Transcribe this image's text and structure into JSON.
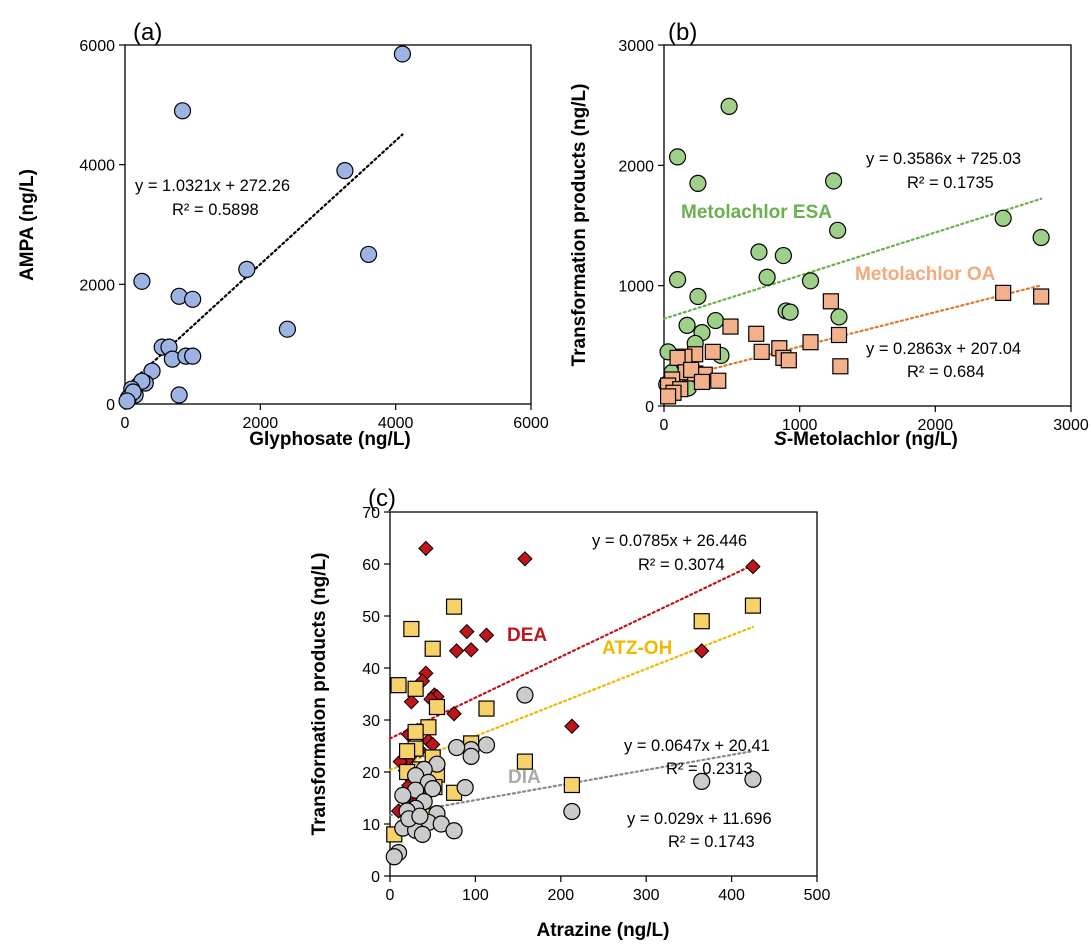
{
  "chart_data": [
    {
      "type": "scatter",
      "panel_label": "(a)",
      "xlabel": "Glyphosate (ng/L)",
      "ylabel": "AMPA (ng/L)",
      "xlim": [
        0,
        6000
      ],
      "ylim": [
        0,
        6000
      ],
      "xticks": [
        "0",
        "2000",
        "4000",
        "6000"
      ],
      "yticks": [
        "0",
        "2000",
        "4000",
        "6000"
      ],
      "grid": false,
      "series": [
        {
          "color": "#9db3e3",
          "marker": "circle",
          "points": [
            [
              4100,
              5850
            ],
            [
              850,
              4900
            ],
            [
              3250,
              3900
            ],
            [
              3600,
              2500
            ],
            [
              1800,
              2250
            ],
            [
              2400,
              1250
            ],
            [
              250,
              2050
            ],
            [
              800,
              1800
            ],
            [
              1000,
              1750
            ],
            [
              550,
              950
            ],
            [
              650,
              950
            ],
            [
              700,
              750
            ],
            [
              900,
              800
            ],
            [
              1000,
              800
            ],
            [
              400,
              550
            ],
            [
              300,
              350
            ],
            [
              250,
              380
            ],
            [
              150,
              150
            ],
            [
              100,
              250
            ],
            [
              50,
              100
            ],
            [
              800,
              150
            ],
            [
              120,
              200
            ],
            [
              30,
              50
            ]
          ],
          "trend": {
            "slope": 1.0321,
            "intercept": 272.26,
            "x_range": [
              0,
              4100
            ],
            "color": "#000000"
          },
          "equation": "y = 1.0321x + 272.26",
          "r2": "R² = 0.5898"
        }
      ]
    },
    {
      "type": "scatter",
      "panel_label": "(b)",
      "xlabel_prefix": "S",
      "xlabel": "-Metolachlor (ng/L)",
      "ylabel": "Transformation products (ng/L)",
      "xlim": [
        0,
        3000
      ],
      "ylim": [
        0,
        3000
      ],
      "xticks": [
        "0",
        "1000",
        "2000",
        "3000"
      ],
      "yticks": [
        "0",
        "1000",
        "2000",
        "3000"
      ],
      "grid": false,
      "series": [
        {
          "name": "Metolachlor ESA",
          "color": "#9fd08a",
          "marker": "circle",
          "points": [
            [
              480,
              2490
            ],
            [
              100,
              2070
            ],
            [
              250,
              1850
            ],
            [
              1250,
              1870
            ],
            [
              2500,
              1560
            ],
            [
              2780,
              1400
            ],
            [
              1280,
              1460
            ],
            [
              700,
              1280
            ],
            [
              880,
              1250
            ],
            [
              760,
              1070
            ],
            [
              100,
              1050
            ],
            [
              1080,
              1040
            ],
            [
              250,
              910
            ],
            [
              900,
              790
            ],
            [
              930,
              780
            ],
            [
              1290,
              740
            ],
            [
              170,
              670
            ],
            [
              380,
              710
            ],
            [
              280,
              610
            ],
            [
              230,
              520
            ],
            [
              420,
              420
            ],
            [
              30,
              450
            ],
            [
              60,
              280
            ],
            [
              150,
              350
            ],
            [
              20,
              180
            ],
            [
              80,
              200
            ],
            [
              250,
              250
            ],
            [
              180,
              150
            ]
          ],
          "trend": {
            "slope": 0.3586,
            "intercept": 725.03,
            "x_range": [
              0,
              2780
            ],
            "color": "#6ab04c"
          },
          "equation": "y = 0.3586x + 725.03",
          "r2": "R² = 0.1735",
          "label_color": "#6ab04c"
        },
        {
          "name": "Metolachlor OA",
          "color": "#f2b08b",
          "marker": "square",
          "points": [
            [
              2500,
              940
            ],
            [
              2780,
              910
            ],
            [
              1230,
              870
            ],
            [
              490,
              660
            ],
            [
              680,
              600
            ],
            [
              1290,
              590
            ],
            [
              1080,
              530
            ],
            [
              850,
              480
            ],
            [
              880,
              400
            ],
            [
              920,
              380
            ],
            [
              720,
              450
            ],
            [
              360,
              450
            ],
            [
              230,
              430
            ],
            [
              150,
              410
            ],
            [
              100,
              400
            ],
            [
              160,
              280
            ],
            [
              230,
              270
            ],
            [
              300,
              260
            ],
            [
              400,
              210
            ],
            [
              1300,
              330
            ],
            [
              60,
              220
            ],
            [
              30,
              170
            ],
            [
              120,
              140
            ],
            [
              70,
              110
            ],
            [
              30,
              80
            ],
            [
              200,
              300
            ],
            [
              280,
              200
            ]
          ],
          "trend": {
            "slope": 0.2863,
            "intercept": 207.04,
            "x_range": [
              0,
              2780
            ],
            "color": "#e07a30"
          },
          "equation": "y = 0.2863x + 207.04",
          "r2": "R² = 0.684",
          "label_color": "#f2a97b"
        }
      ]
    },
    {
      "type": "scatter",
      "panel_label": "(c)",
      "xlabel": "Atrazine (ng/L)",
      "ylabel": "Transformation products (ng/L)",
      "xlim": [
        0,
        500
      ],
      "ylim": [
        0,
        70
      ],
      "xticks": [
        "0",
        "100",
        "200",
        "300",
        "400",
        "500"
      ],
      "yticks": [
        "0",
        "10",
        "20",
        "30",
        "40",
        "50",
        "60",
        "70"
      ],
      "grid": false,
      "series": [
        {
          "name": "DEA",
          "color": "#c0141a",
          "marker": "diamond",
          "points": [
            [
              42,
              63
            ],
            [
              158,
              61
            ],
            [
              425,
              59.5
            ],
            [
              90,
              47
            ],
            [
              113,
              46.3
            ],
            [
              95,
              43.5
            ],
            [
              78,
              43.3
            ],
            [
              365,
              43.3
            ],
            [
              42,
              39
            ],
            [
              38,
              37.5
            ],
            [
              52,
              34.8
            ],
            [
              55,
              34.5
            ],
            [
              48,
              34
            ],
            [
              25,
              33.5
            ],
            [
              75,
              31.2
            ],
            [
              213,
              28.8
            ],
            [
              32,
              28
            ],
            [
              22,
              27.2
            ],
            [
              45,
              26
            ],
            [
              50,
              25.3
            ],
            [
              35,
              24.2
            ],
            [
              28,
              23.7
            ],
            [
              20,
              22.3
            ],
            [
              12,
              22
            ],
            [
              55,
              21.8
            ],
            [
              18,
              20.3
            ],
            [
              35,
              19.8
            ],
            [
              25,
              18.6
            ],
            [
              48,
              18
            ],
            [
              22,
              17.4
            ],
            [
              40,
              16.3
            ],
            [
              15,
              15.5
            ],
            [
              30,
              14.3
            ],
            [
              10,
              12.5
            ],
            [
              42,
              10.2
            ]
          ],
          "trend": {
            "slope": 0.0785,
            "intercept": 26.446,
            "x_range": [
              0,
              425
            ],
            "color": "#c0141a"
          },
          "equation": "y = 0.0785x + 26.446",
          "r2": "R² = 0.3074",
          "label_color": "#c0141a"
        },
        {
          "name": "ATZ-OH",
          "color": "#f7d26b",
          "marker": "square",
          "points": [
            [
              75,
              51.8
            ],
            [
              425,
              52
            ],
            [
              365,
              49
            ],
            [
              25,
              47.5
            ],
            [
              50,
              43.7
            ],
            [
              10,
              36.7
            ],
            [
              30,
              36
            ],
            [
              55,
              32.5
            ],
            [
              113,
              32.2
            ],
            [
              45,
              28.6
            ],
            [
              30,
              27.7
            ],
            [
              95,
              25.5
            ],
            [
              30,
              24.5
            ],
            [
              20,
              24
            ],
            [
              50,
              22.8
            ],
            [
              158,
              22
            ],
            [
              35,
              20.5
            ],
            [
              20,
              20
            ],
            [
              55,
              19.5
            ],
            [
              35,
              18.8
            ],
            [
              52,
              17.1
            ],
            [
              75,
              16
            ],
            [
              213,
              17.5
            ],
            [
              5,
              8
            ],
            [
              25,
              10.5
            ],
            [
              40,
              11.5
            ]
          ],
          "trend": {
            "slope": 0.0647,
            "intercept": 20.41,
            "x_range": [
              0,
              425
            ],
            "color": "#f0b800"
          },
          "equation": "y = 0.0647x + 20.41",
          "r2": "R² = 0.2313",
          "label_color": "#f0b800"
        },
        {
          "name": "DIA",
          "color": "#cbcbcb",
          "marker": "circle",
          "points": [
            [
              158,
              34.8
            ],
            [
              113,
              25.2
            ],
            [
              95,
              24.3
            ],
            [
              78,
              24.7
            ],
            [
              95,
              23
            ],
            [
              55,
              21.5
            ],
            [
              40,
              20.5
            ],
            [
              30,
              19.3
            ],
            [
              45,
              18
            ],
            [
              88,
              17
            ],
            [
              50,
              16.8
            ],
            [
              30,
              16.5
            ],
            [
              15,
              15.5
            ],
            [
              40,
              14.3
            ],
            [
              30,
              13
            ],
            [
              20,
              12.5
            ],
            [
              55,
              12
            ],
            [
              45,
              10.3
            ],
            [
              60,
              10
            ],
            [
              15,
              9.2
            ],
            [
              30,
              8.8
            ],
            [
              75,
              8.7
            ],
            [
              38,
              8
            ],
            [
              10,
              4.5
            ],
            [
              5,
              3.7
            ],
            [
              213,
              12.4
            ],
            [
              365,
              18.2
            ],
            [
              425,
              18.6
            ],
            [
              22,
              11
            ],
            [
              35,
              11.5
            ]
          ],
          "trend": {
            "slope": 0.029,
            "intercept": 11.696,
            "x_range": [
              0,
              425
            ],
            "color": "#888888"
          },
          "equation": "y = 0.029x + 11.696",
          "r2": "R² = 0.1743",
          "label_color": "#aaaaaa"
        }
      ]
    }
  ]
}
